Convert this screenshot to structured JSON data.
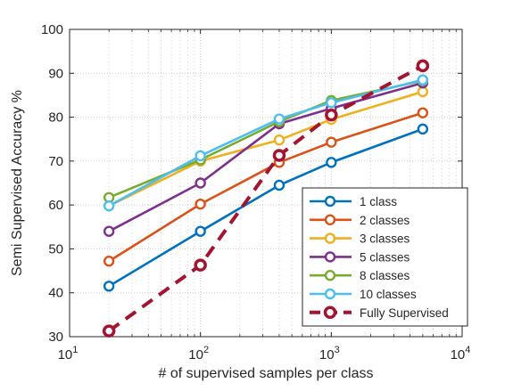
{
  "chart_data": {
    "type": "line",
    "title": "",
    "xlabel": "# of supervised samples per class",
    "ylabel": "Semi Supervised Accuracy %",
    "xscale": "log",
    "xlim": [
      10,
      10000
    ],
    "ylim": [
      30,
      100
    ],
    "x_ticks": [
      {
        "value": 10,
        "base": "10",
        "exp": "1"
      },
      {
        "value": 100,
        "base": "10",
        "exp": "2"
      },
      {
        "value": 1000,
        "base": "10",
        "exp": "3"
      },
      {
        "value": 10000,
        "base": "10",
        "exp": "4"
      }
    ],
    "y_ticks": [
      30,
      40,
      50,
      60,
      70,
      80,
      90,
      100
    ],
    "y_tick_labels": [
      "30",
      "40",
      "50",
      "60",
      "70",
      "80",
      "90",
      "100"
    ],
    "grid": true,
    "minor_grid": true,
    "legend_position": "bottom-right",
    "x": [
      20,
      100,
      400,
      1000,
      5000
    ],
    "series": [
      {
        "name": "1 class",
        "color": "#0072BD",
        "style": "solid",
        "values": [
          41.5,
          54.0,
          64.5,
          69.7,
          77.3
        ]
      },
      {
        "name": "2 classes",
        "color": "#D95319",
        "style": "solid",
        "values": [
          47.2,
          60.2,
          69.7,
          74.3,
          81.0
        ]
      },
      {
        "name": "3 classes",
        "color": "#EDB120",
        "style": "solid",
        "values": [
          59.8,
          70.0,
          74.8,
          79.5,
          85.8
        ]
      },
      {
        "name": "5 classes",
        "color": "#7E2F8E",
        "style": "solid",
        "values": [
          54.0,
          65.0,
          78.5,
          82.0,
          87.8
        ]
      },
      {
        "name": "8 classes",
        "color": "#77AC30",
        "style": "solid",
        "values": [
          61.7,
          70.3,
          79.0,
          83.8,
          88.3
        ]
      },
      {
        "name": "10 classes",
        "color": "#4DBEEE",
        "style": "solid",
        "values": [
          59.8,
          71.2,
          79.6,
          83.3,
          88.5
        ]
      },
      {
        "name": "Fully Supervised",
        "color": "#A2142F",
        "style": "dashed",
        "values": [
          31.3,
          46.3,
          71.3,
          80.5,
          91.7
        ]
      }
    ]
  }
}
